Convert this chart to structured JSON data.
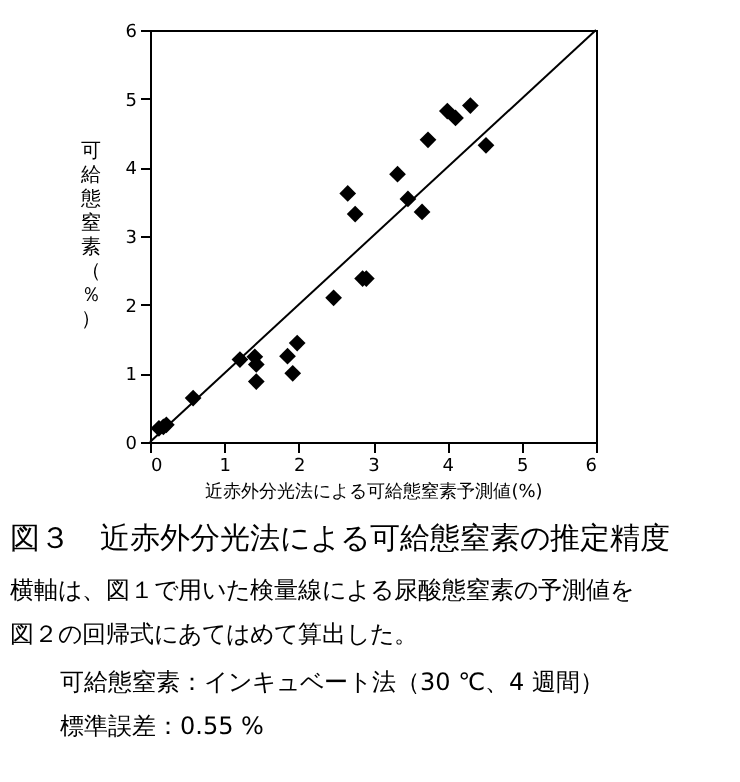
{
  "chart_data": {
    "type": "scatter",
    "title": "図３　近赤外分光法による可給態窒素の推定精度",
    "xlabel": "近赤外分光法による可給態窒素予測値(%)",
    "ylabel": "可給態窒素（％）",
    "xlim": [
      0,
      6
    ],
    "ylim": [
      0,
      6
    ],
    "xticks": [
      0,
      1,
      2,
      3,
      4,
      5,
      6
    ],
    "yticks": [
      0,
      1,
      2,
      3,
      4,
      5,
      6
    ],
    "grid": false,
    "marker": "diamond",
    "series": [
      {
        "color": "#000000",
        "x": [
          0.12,
          0.18,
          0.22,
          0.58,
          1.21,
          1.41,
          1.43,
          1.43,
          1.85,
          1.98,
          1.92,
          2.47,
          2.66,
          2.76,
          2.86,
          2.91,
          3.33,
          3.47,
          3.66,
          3.74,
          4.0,
          4.11,
          4.31,
          4.52
        ],
        "values": [
          0.2,
          0.22,
          0.25,
          0.64,
          1.2,
          1.24,
          1.13,
          0.88,
          1.25,
          1.44,
          1.0,
          2.1,
          3.62,
          3.32,
          2.38,
          2.38,
          3.9,
          3.54,
          3.35,
          4.4,
          4.82,
          4.72,
          4.9,
          4.32
        ]
      },
      {
        "type": "line",
        "marker": "none",
        "color": "#000000",
        "x": [
          0,
          6
        ],
        "values": [
          0,
          6
        ]
      }
    ],
    "annotations": [
      "横軸は、図１で用いた検量線による尿酸態窒素の予測値を",
      "図２の回帰式にあてはめて算出した。",
      "可給態窒素：インキュベート法（30 ℃、4 週間）",
      "標準誤差：0.55 %"
    ]
  }
}
